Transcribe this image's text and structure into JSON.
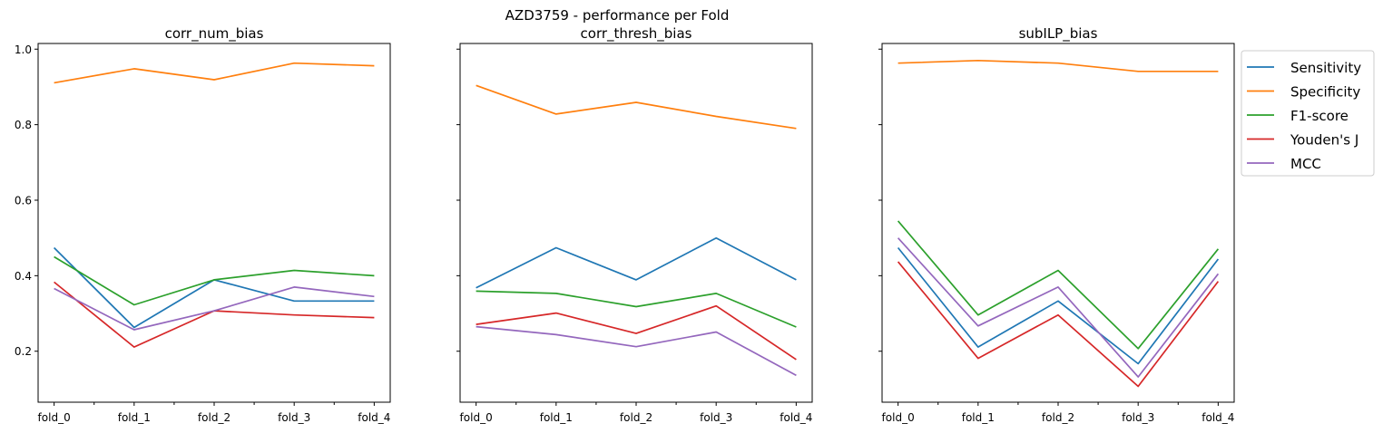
{
  "figure": {
    "suptitle": "AZD3759 - performance per Fold"
  },
  "legend": {
    "placement": "outside-right-top",
    "entries": [
      "Sensitivity",
      "Specificity",
      "F1-score",
      "Youden's J",
      "MCC"
    ]
  },
  "colors": {
    "Sensitivity": "#1f77b4",
    "Specificity": "#ff7f0e",
    "F1-score": "#2ca02c",
    "Youden's J": "#d62728",
    "MCC": "#9467bd"
  },
  "chart_data": [
    {
      "type": "line",
      "title": "corr_num_bias",
      "x": [
        "fold_0",
        "fold_1",
        "fold_2",
        "fold_3",
        "fold_4"
      ],
      "ylim": [
        0.065,
        1.015
      ],
      "yticks": [
        0.2,
        0.4,
        0.6,
        0.8,
        1.0
      ],
      "ytick_labels": [
        "0.2",
        "0.4",
        "0.6",
        "0.8",
        "1.0"
      ],
      "grid": false,
      "series": [
        {
          "name": "Sensitivity",
          "values": [
            0.474,
            0.263,
            0.389,
            0.333,
            0.333
          ]
        },
        {
          "name": "Specificity",
          "values": [
            0.911,
            0.948,
            0.919,
            0.963,
            0.956
          ]
        },
        {
          "name": "F1-score",
          "values": [
            0.45,
            0.323,
            0.389,
            0.414,
            0.4
          ]
        },
        {
          "name": "Youden's J",
          "values": [
            0.383,
            0.211,
            0.307,
            0.296,
            0.289
          ]
        },
        {
          "name": "MCC",
          "values": [
            0.366,
            0.257,
            0.307,
            0.37,
            0.345
          ]
        }
      ]
    },
    {
      "type": "line",
      "title": "corr_thresh_bias",
      "x": [
        "fold_0",
        "fold_1",
        "fold_2",
        "fold_3",
        "fold_4"
      ],
      "ylim": [
        0.065,
        1.015
      ],
      "yticks": [
        0.2,
        0.4,
        0.6,
        0.8,
        1.0
      ],
      "ytick_labels": [],
      "grid": false,
      "series": [
        {
          "name": "Sensitivity",
          "values": [
            0.368,
            0.474,
            0.389,
            0.5,
            0.389
          ]
        },
        {
          "name": "Specificity",
          "values": [
            0.904,
            0.828,
            0.859,
            0.822,
            0.79
          ]
        },
        {
          "name": "F1-score",
          "values": [
            0.359,
            0.353,
            0.318,
            0.353,
            0.264
          ]
        },
        {
          "name": "Youden's J",
          "values": [
            0.271,
            0.301,
            0.247,
            0.32,
            0.178
          ]
        },
        {
          "name": "MCC",
          "values": [
            0.265,
            0.244,
            0.212,
            0.251,
            0.136
          ]
        }
      ]
    },
    {
      "type": "line",
      "title": "subILP_bias",
      "x": [
        "fold_0",
        "fold_1",
        "fold_2",
        "fold_3",
        "fold_4"
      ],
      "ylim": [
        0.065,
        1.015
      ],
      "yticks": [
        0.2,
        0.4,
        0.6,
        0.8,
        1.0
      ],
      "ytick_labels": [],
      "grid": false,
      "series": [
        {
          "name": "Sensitivity",
          "values": [
            0.474,
            0.211,
            0.333,
            0.167,
            0.444
          ]
        },
        {
          "name": "Specificity",
          "values": [
            0.963,
            0.97,
            0.963,
            0.941,
            0.941
          ]
        },
        {
          "name": "F1-score",
          "values": [
            0.545,
            0.296,
            0.414,
            0.207,
            0.471
          ]
        },
        {
          "name": "Youden's J",
          "values": [
            0.437,
            0.181,
            0.296,
            0.107,
            0.385
          ]
        },
        {
          "name": "MCC",
          "values": [
            0.5,
            0.267,
            0.37,
            0.132,
            0.405
          ]
        }
      ]
    }
  ]
}
